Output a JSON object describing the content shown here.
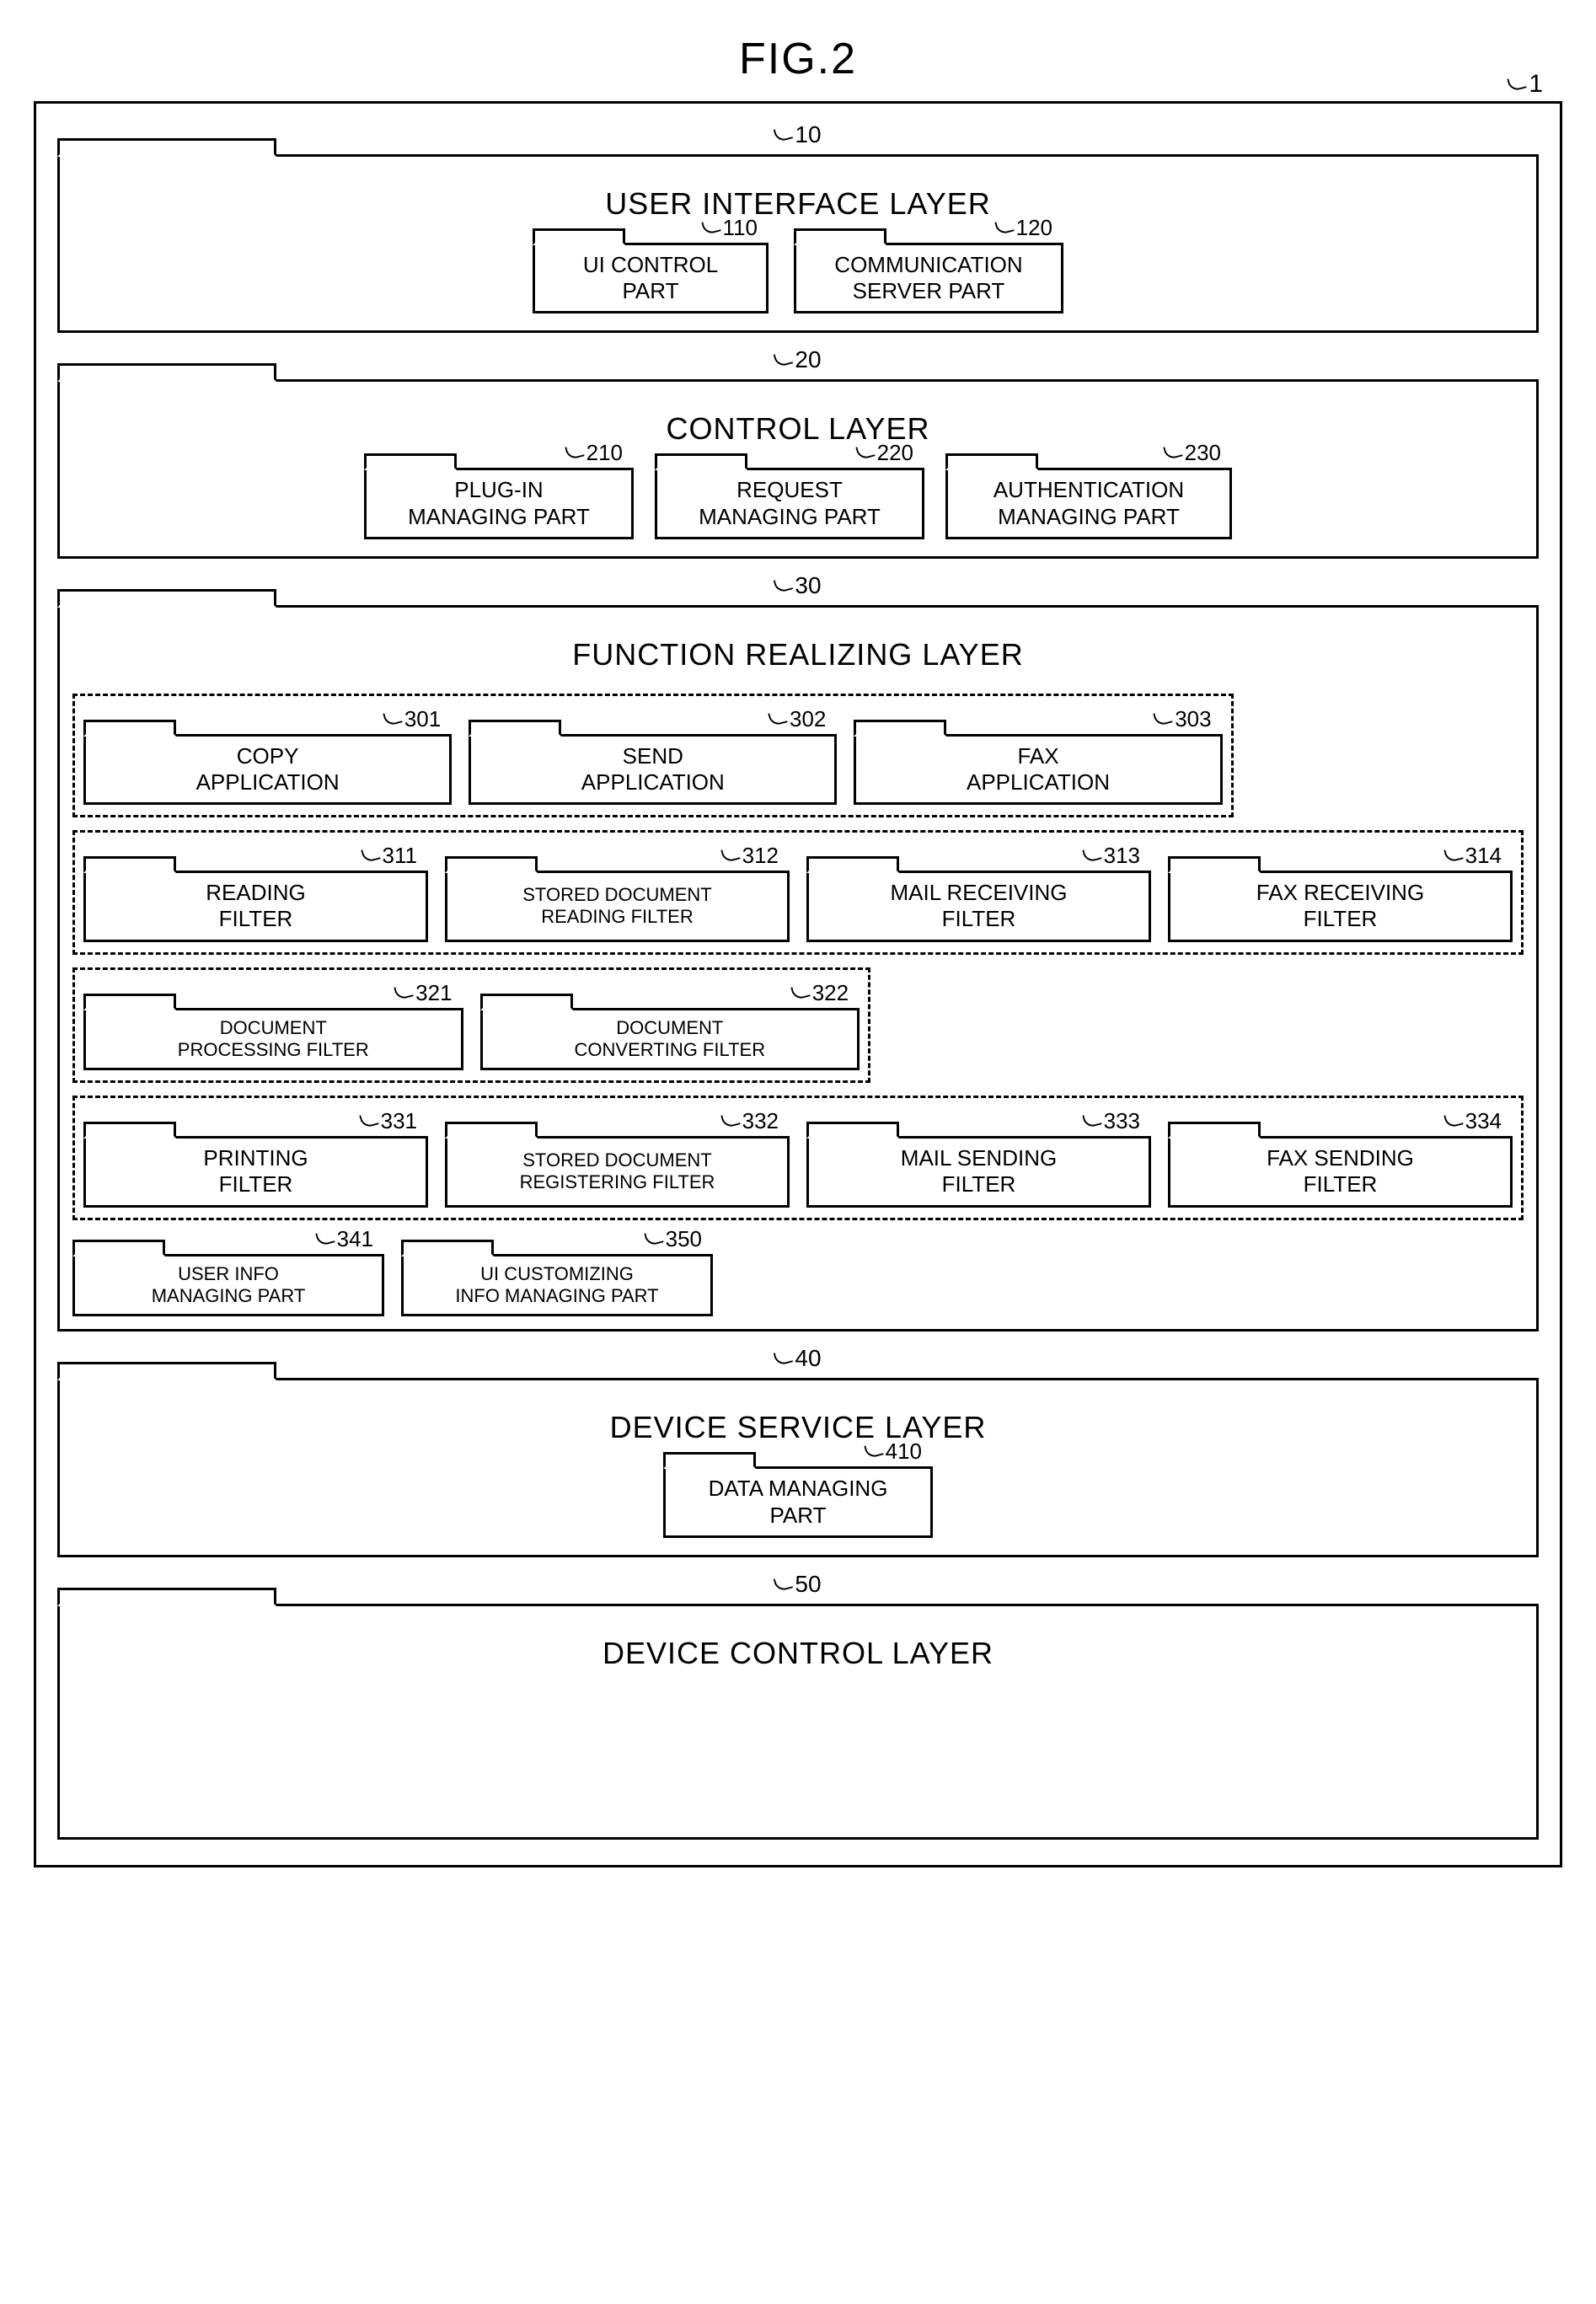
{
  "figure_title": "FIG.2",
  "outer_ref": "1",
  "layers": {
    "ui": {
      "ref": "10",
      "title": "USER INTERFACE LAYER",
      "boxes": {
        "ui_control": {
          "ref": "110",
          "label": "UI CONTROL\nPART"
        },
        "comm_server": {
          "ref": "120",
          "label": "COMMUNICATION\nSERVER PART"
        }
      }
    },
    "control": {
      "ref": "20",
      "title": "CONTROL LAYER",
      "boxes": {
        "plugin": {
          "ref": "210",
          "label": "PLUG-IN\nMANAGING PART"
        },
        "request": {
          "ref": "220",
          "label": "REQUEST\nMANAGING PART"
        },
        "auth": {
          "ref": "230",
          "label": "AUTHENTICATION\nMANAGING PART"
        }
      }
    },
    "function": {
      "ref": "30",
      "title": "FUNCTION REALIZING LAYER",
      "group_apps": {
        "copy": {
          "ref": "301",
          "label": "COPY\nAPPLICATION"
        },
        "send": {
          "ref": "302",
          "label": "SEND\nAPPLICATION"
        },
        "fax": {
          "ref": "303",
          "label": "FAX\nAPPLICATION"
        }
      },
      "group_read": {
        "reading": {
          "ref": "311",
          "label": "READING\nFILTER"
        },
        "stored_read": {
          "ref": "312",
          "label": "STORED DOCUMENT\nREADING FILTER"
        },
        "mail_recv": {
          "ref": "313",
          "label": "MAIL RECEIVING\nFILTER"
        },
        "fax_recv": {
          "ref": "314",
          "label": "FAX RECEIVING\nFILTER"
        }
      },
      "group_proc": {
        "doc_proc": {
          "ref": "321",
          "label": "DOCUMENT\nPROCESSING FILTER"
        },
        "doc_conv": {
          "ref": "322",
          "label": "DOCUMENT\nCONVERTING FILTER"
        }
      },
      "group_send": {
        "printing": {
          "ref": "331",
          "label": "PRINTING\nFILTER"
        },
        "stored_reg": {
          "ref": "332",
          "label": "STORED DOCUMENT\nREGISTERING FILTER"
        },
        "mail_send": {
          "ref": "333",
          "label": "MAIL SENDING\nFILTER"
        },
        "fax_send": {
          "ref": "334",
          "label": "FAX SENDING\nFILTER"
        }
      },
      "plain": {
        "user_info": {
          "ref": "341",
          "label": "USER INFO\nMANAGING PART"
        },
        "ui_custom": {
          "ref": "350",
          "label": "UI CUSTOMIZING\nINFO MANAGING PART"
        }
      }
    },
    "device_service": {
      "ref": "40",
      "title": "DEVICE SERVICE LAYER",
      "boxes": {
        "data_mgr": {
          "ref": "410",
          "label": "DATA MANAGING\nPART"
        }
      }
    },
    "device_control": {
      "ref": "50",
      "title": "DEVICE CONTROL LAYER"
    }
  }
}
